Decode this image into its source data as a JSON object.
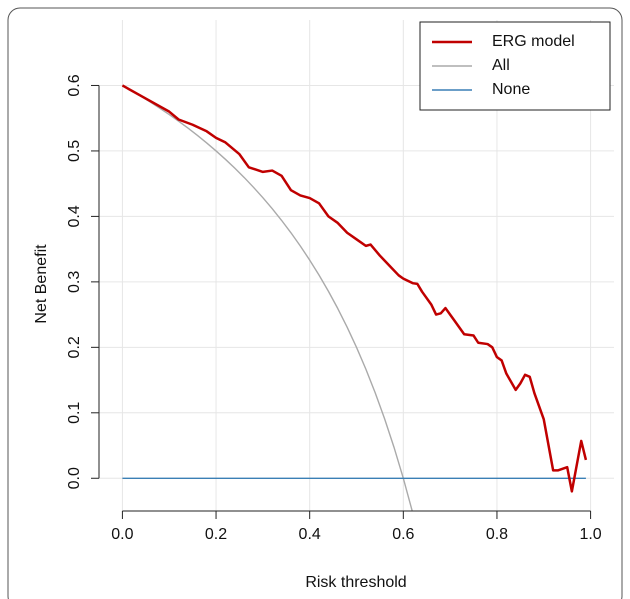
{
  "chart_data": {
    "type": "line",
    "xlabel": "Risk threshold",
    "ylabel": "Net Benefit",
    "xlim": [
      -0.05,
      1.05
    ],
    "ylim": [
      -0.05,
      0.7
    ],
    "xticks": [
      {
        "value": 0,
        "label": "0.0"
      },
      0.2,
      0.4,
      0.6,
      0.8,
      {
        "value": 1,
        "label": "1.0"
      }
    ],
    "yticks": [
      {
        "value": 0,
        "label": "0.0"
      },
      0.1,
      0.2,
      0.3,
      0.4,
      0.5,
      0.6
    ],
    "grid": true,
    "legend": "top-right",
    "series": [
      {
        "name": "ERG model",
        "color": "#c00000",
        "x": [
          0,
          0.05,
          0.1,
          0.12,
          0.15,
          0.18,
          0.2,
          0.22,
          0.25,
          0.27,
          0.3,
          0.32,
          0.34,
          0.36,
          0.38,
          0.4,
          0.42,
          0.44,
          0.46,
          0.48,
          0.5,
          0.52,
          0.53,
          0.55,
          0.57,
          0.59,
          0.6,
          0.62,
          0.63,
          0.64,
          0.66,
          0.67,
          0.68,
          0.69,
          0.7,
          0.71,
          0.73,
          0.75,
          0.76,
          0.78,
          0.79,
          0.8,
          0.81,
          0.82,
          0.84,
          0.85,
          0.86,
          0.87,
          0.88,
          0.9,
          0.92,
          0.93,
          0.95,
          0.96,
          0.98,
          0.99
        ],
        "values": [
          0.6,
          0.58,
          0.56,
          0.548,
          0.54,
          0.53,
          0.52,
          0.513,
          0.495,
          0.475,
          0.468,
          0.47,
          0.462,
          0.44,
          0.432,
          0.428,
          0.42,
          0.4,
          0.39,
          0.375,
          0.365,
          0.355,
          0.357,
          0.34,
          0.325,
          0.31,
          0.305,
          0.298,
          0.297,
          0.285,
          0.265,
          0.25,
          0.252,
          0.26,
          0.25,
          0.24,
          0.22,
          0.218,
          0.207,
          0.205,
          0.2,
          0.185,
          0.18,
          0.16,
          0.135,
          0.145,
          0.158,
          0.155,
          0.13,
          0.09,
          0.012,
          0.012,
          0.017,
          -0.02,
          0.057,
          0.028
        ]
      },
      {
        "name": "All",
        "color": "#aaaaaa",
        "x": [
          0,
          0.02,
          0.04,
          0.06,
          0.08,
          0.1,
          0.12,
          0.14,
          0.16,
          0.18,
          0.2,
          0.22,
          0.24,
          0.26,
          0.28,
          0.3,
          0.32,
          0.34,
          0.36,
          0.38,
          0.4,
          0.42,
          0.44,
          0.46,
          0.48,
          0.5,
          0.52,
          0.54,
          0.56,
          0.58,
          0.6,
          0.62
        ],
        "values": [
          0.6,
          0.5918,
          0.5833,
          0.5745,
          0.5652,
          0.5556,
          0.5455,
          0.5349,
          0.5238,
          0.5122,
          0.5,
          0.4872,
          0.4737,
          0.4595,
          0.4444,
          0.4286,
          0.4118,
          0.3939,
          0.375,
          0.3548,
          0.3333,
          0.3103,
          0.2857,
          0.2593,
          0.2308,
          0.2,
          0.1667,
          0.1304,
          0.0909,
          0.0476,
          0,
          -0.0526
        ]
      },
      {
        "name": "None",
        "color": "#3a7fb5",
        "x": [
          0,
          0.99
        ],
        "values": [
          0,
          0
        ]
      }
    ]
  }
}
